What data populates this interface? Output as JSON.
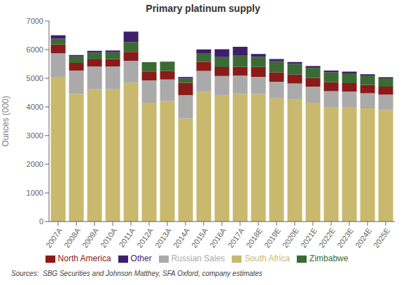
{
  "chart_data": {
    "type": "bar",
    "stacked": true,
    "title": "Primary platinum supply",
    "ylabel": "Ounces (000)",
    "source": "Sources:  SBG Securities and Johnson Matthey, SFA Oxford, company estimates",
    "categories": [
      "2007A",
      "2008A",
      "2009A",
      "2010A",
      "2011A",
      "2012A",
      "2013A",
      "2014A",
      "2015A",
      "2016A",
      "2017A",
      "2018E",
      "2019E",
      "2020E",
      "2021E",
      "2022E",
      "2023E",
      "2024E",
      "2025E"
    ],
    "series": [
      {
        "name": "South Africa",
        "color": "#C8B96E",
        "values": [
          5050,
          4450,
          4620,
          4620,
          4850,
          4150,
          4200,
          3600,
          4530,
          4400,
          4450,
          4450,
          4300,
          4250,
          4150,
          4000,
          4000,
          3950,
          3900
        ]
      },
      {
        "name": "Russian Sales",
        "color": "#AAAAAA",
        "values": [
          820,
          820,
          790,
          790,
          760,
          780,
          760,
          810,
          730,
          680,
          640,
          600,
          580,
          570,
          560,
          550,
          540,
          530,
          530
        ]
      },
      {
        "name": "North America",
        "color": "#8B1A1A",
        "values": [
          310,
          270,
          250,
          260,
          310,
          310,
          290,
          430,
          310,
          310,
          310,
          350,
          330,
          310,
          300,
          310,
          290,
          290,
          280
        ]
      },
      {
        "name": "Zimbabwe",
        "color": "#3A6B35",
        "values": [
          200,
          220,
          240,
          240,
          340,
          320,
          330,
          150,
          310,
          350,
          390,
          350,
          380,
          370,
          350,
          350,
          340,
          330,
          290
        ]
      },
      {
        "name": "Other",
        "color": "#3D1F6B",
        "values": [
          120,
          50,
          60,
          60,
          370,
          0,
          0,
          55,
          125,
          270,
          310,
          100,
          80,
          70,
          70,
          60,
          60,
          40,
          40
        ]
      }
    ],
    "ylim": [
      0,
      7000
    ],
    "yticks": [
      0,
      1000,
      2000,
      3000,
      4000,
      5000,
      6000,
      7000
    ],
    "grid": false,
    "legend": "bottom"
  }
}
